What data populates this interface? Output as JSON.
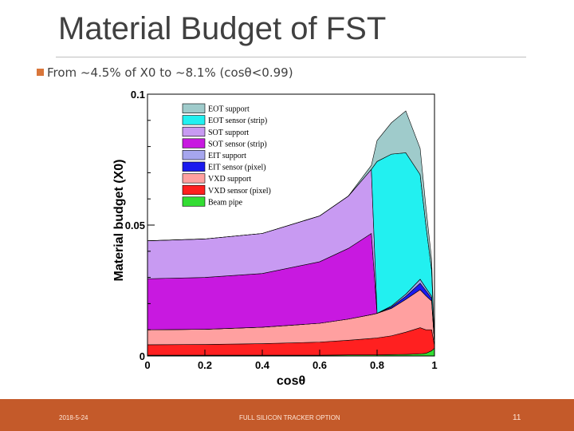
{
  "slide": {
    "title": "Material Budget of FST",
    "bullet": "From ~4.5% of X0 to ~8.1% (cosθ<0.99)"
  },
  "footer": {
    "date": "2018-5-24",
    "center_text": "FULL SILICON TRACKER OPTION",
    "page_number": "11"
  },
  "colors": {
    "footer_bar": "#c45a2a",
    "bullet_marker": "#d9763a"
  },
  "chart_data": {
    "type": "area",
    "stacked": true,
    "xlabel": "cosθ",
    "ylabel": "Material budget (X0)",
    "xlim": [
      0,
      1
    ],
    "ylim": [
      0,
      0.1
    ],
    "x_ticks": [
      "0",
      "0.2",
      "0.4",
      "0.6",
      "0.8",
      "1"
    ],
    "y_ticks": [
      {
        "value": 0,
        "label": "0"
      },
      {
        "value": 0.05,
        "label": "0.05"
      },
      {
        "value": 0.1,
        "label": "0.1"
      }
    ],
    "legend_position": "top-right",
    "x": [
      0,
      0.2,
      0.4,
      0.6,
      0.7,
      0.78,
      0.8,
      0.85,
      0.9,
      0.95,
      0.97,
      0.99,
      1.0
    ],
    "legend_order": [
      "EOT support",
      "EOT sensor (strip)",
      "SOT support",
      "SOT sensor (strip)",
      "EIT support",
      "EIT sensor (pixel)",
      "VXD support",
      "VXD sensor (pixel)",
      "Beam pipe"
    ],
    "series": [
      {
        "name": "Beam pipe",
        "color": "#33dd33",
        "values": [
          0.0003,
          0.0003,
          0.0003,
          0.0003,
          0.0004,
          0.0004,
          0.0004,
          0.0005,
          0.0006,
          0.0008,
          0.001,
          0.002,
          0.003
        ]
      },
      {
        "name": "VXD sensor (pixel)",
        "color": "#ff2020",
        "values": [
          0.004,
          0.0041,
          0.0044,
          0.005,
          0.0056,
          0.0063,
          0.0065,
          0.0072,
          0.0085,
          0.01,
          0.009,
          0.008,
          0.001
        ]
      },
      {
        "name": "VXD support",
        "color": "#ffa0a0",
        "values": [
          0.0057,
          0.0058,
          0.0063,
          0.0072,
          0.0081,
          0.0091,
          0.0094,
          0.0105,
          0.0125,
          0.0145,
          0.013,
          0.011,
          0.001
        ]
      },
      {
        "name": "EIT sensor (pixel)",
        "color": "#1a1aee",
        "values": [
          0,
          0,
          0,
          0,
          0,
          0,
          0,
          0.0005,
          0.0012,
          0.0025,
          0.002,
          0.001,
          0
        ]
      },
      {
        "name": "EIT support",
        "color": "#a6a6ee",
        "values": [
          0,
          0,
          0,
          0,
          0,
          0,
          0,
          0.0004,
          0.0008,
          0.0015,
          0.001,
          0.0008,
          0
        ]
      },
      {
        "name": "SOT sensor (strip)",
        "color": "#c819e0",
        "values": [
          0.0195,
          0.0198,
          0.0205,
          0.0235,
          0.027,
          0.031,
          0.0,
          0.0,
          0.0,
          0.0,
          0.0,
          0.0,
          0.0
        ]
      },
      {
        "name": "SOT support",
        "color": "#c89af2",
        "values": [
          0.0145,
          0.0147,
          0.0153,
          0.0175,
          0.02,
          0.0245,
          0.0,
          0.0,
          0.0,
          0.0,
          0.0,
          0.0,
          0.0
        ]
      },
      {
        "name": "EOT sensor (strip)",
        "color": "#22f0f0",
        "values": [
          0,
          0,
          0,
          0,
          0,
          0,
          0.058,
          0.058,
          0.054,
          0.04,
          0.024,
          0.01,
          0
        ]
      },
      {
        "name": "EOT support",
        "color": "#9fcbcb",
        "values": [
          0,
          0,
          0,
          0,
          0,
          0.0015,
          0.008,
          0.012,
          0.016,
          0.01,
          0.007,
          0.004,
          0
        ]
      }
    ]
  }
}
